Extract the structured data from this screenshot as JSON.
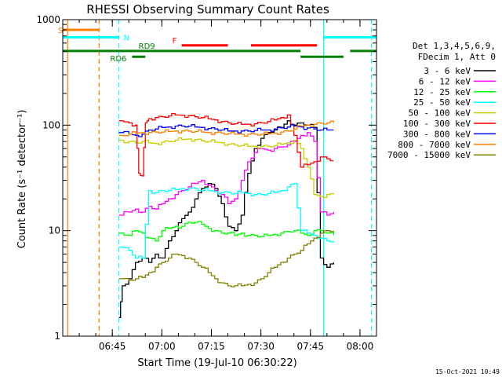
{
  "chart_data": {
    "type": "line",
    "title": "RHESSI Observing Summary Count Rates",
    "xlabel": "Start Time (19-Jul-10 06:30:22)",
    "ylabel": "Count Rate (s⁻¹ detector⁻¹)",
    "y_scale": "log",
    "ylim": [
      1,
      1000
    ],
    "xlim_minutes": [
      0,
      95
    ],
    "x_ticks": [
      {
        "minute": 15,
        "label": "06:45"
      },
      {
        "minute": 30,
        "label": "07:00"
      },
      {
        "minute": 45,
        "label": "07:15"
      },
      {
        "minute": 60,
        "label": "07:30"
      },
      {
        "minute": 75,
        "label": "07:45"
      },
      {
        "minute": 90,
        "label": "08:00"
      }
    ],
    "y_ticks": [
      {
        "value": 1,
        "label": "1"
      },
      {
        "value": 10,
        "label": "10"
      },
      {
        "value": 100,
        "label": "100"
      },
      {
        "value": 1000,
        "label": "1000"
      }
    ],
    "legend_header": [
      "Det 1,3,4,5,6,9,",
      "FDecim 1, Att 0"
    ],
    "legend_placement": "right",
    "series": [
      {
        "name": "3 - 6 keV",
        "color": "#000000",
        "x": [
          17,
          18,
          20,
          22,
          24,
          26,
          28,
          30,
          32,
          34,
          36,
          38,
          40,
          42,
          44,
          46,
          48,
          50,
          52,
          54,
          56,
          58,
          60,
          62,
          64,
          66,
          68,
          70,
          72,
          74,
          76,
          78,
          80,
          82
        ],
        "y": [
          1.5,
          3,
          3.5,
          5,
          5.5,
          5,
          6,
          5.5,
          8,
          10,
          13,
          15,
          20,
          25,
          28,
          25,
          18,
          11,
          10,
          14,
          35,
          60,
          75,
          85,
          90,
          95,
          110,
          100,
          105,
          100,
          95,
          5.5,
          4.5,
          5
        ]
      },
      {
        "name": "6 - 12 keV",
        "color": "#ff00ff",
        "x": [
          17,
          20,
          22,
          24,
          26,
          28,
          30,
          32,
          34,
          36,
          38,
          40,
          42,
          44,
          46,
          48,
          50,
          52,
          54,
          56,
          58,
          60,
          62,
          64,
          66,
          68,
          70,
          72,
          74,
          76,
          78,
          80,
          82
        ],
        "y": [
          14,
          15,
          16,
          15,
          17,
          16,
          18,
          20,
          22,
          24,
          26,
          28,
          30,
          27,
          24,
          22,
          18,
          20,
          30,
          45,
          55,
          60,
          58,
          60,
          62,
          65,
          70,
          80,
          85,
          70,
          15,
          14,
          15
        ]
      },
      {
        "name": "12 - 25 keV",
        "color": "#00ff00",
        "x": [
          17,
          20,
          22,
          24,
          26,
          28,
          30,
          32,
          34,
          36,
          38,
          40,
          42,
          44,
          46,
          48,
          50,
          52,
          54,
          56,
          58,
          60,
          62,
          64,
          66,
          68,
          70,
          72,
          74,
          76,
          78,
          80,
          82
        ],
        "y": [
          9.5,
          9,
          10,
          9.5,
          8.5,
          8,
          10,
          10.5,
          11,
          11,
          12,
          12,
          11.5,
          10.5,
          10,
          9.5,
          9.5,
          9,
          9.5,
          9,
          9,
          8.8,
          9,
          9.2,
          9.5,
          9.8,
          10,
          9.5,
          9,
          10,
          10,
          9.5,
          9
        ]
      },
      {
        "name": "25 - 50 keV",
        "color": "#00ffff",
        "x": [
          17,
          20,
          22,
          24,
          26,
          28,
          30,
          32,
          34,
          36,
          38,
          40,
          42,
          44,
          46,
          48,
          50,
          52,
          54,
          56,
          58,
          60,
          62,
          64,
          66,
          68,
          70,
          72,
          74,
          76,
          78,
          80,
          82
        ],
        "y": [
          7,
          6.5,
          5.5,
          5.5,
          24,
          23,
          24,
          24,
          24.5,
          25,
          25,
          25,
          24,
          24,
          23.5,
          23,
          23,
          22.5,
          23,
          22.5,
          22,
          22,
          22.5,
          23,
          24,
          26,
          28,
          10,
          9.5,
          9,
          8.5,
          8,
          8
        ]
      },
      {
        "name": "50 - 100 keV",
        "color": "#cccc00",
        "x": [
          17,
          20,
          22,
          24,
          26,
          28,
          30,
          32,
          34,
          36,
          38,
          40,
          42,
          44,
          46,
          48,
          50,
          52,
          54,
          56,
          58,
          60,
          62,
          64,
          66,
          68,
          70,
          72,
          74,
          76,
          78,
          80,
          82
        ],
        "y": [
          72,
          70,
          68,
          70,
          68,
          67,
          69,
          70,
          72,
          73,
          74,
          73,
          71,
          70,
          69,
          68,
          66,
          65,
          64,
          63,
          63,
          63,
          63,
          64,
          66,
          68,
          72,
          60,
          40,
          22,
          21,
          22,
          22
        ]
      },
      {
        "name": "100 - 300 keV",
        "color": "#ff0000",
        "x": [
          17,
          20,
          22,
          23,
          24,
          25,
          26,
          28,
          30,
          32,
          34,
          36,
          38,
          40,
          42,
          44,
          46,
          48,
          50,
          52,
          54,
          56,
          58,
          60,
          62,
          64,
          66,
          68,
          70,
          72,
          74,
          76,
          78,
          80,
          82
        ],
        "y": [
          110,
          105,
          100,
          35,
          33,
          105,
          115,
          118,
          120,
          122,
          125,
          124,
          123,
          120,
          118,
          115,
          112,
          108,
          105,
          103,
          102,
          102,
          103,
          105,
          108,
          112,
          118,
          125,
          80,
          40,
          42,
          45,
          50,
          48,
          46
        ]
      },
      {
        "name": "300 - 800 keV",
        "color": "#0000ff",
        "x": [
          17,
          20,
          22,
          24,
          26,
          28,
          30,
          32,
          34,
          36,
          38,
          40,
          42,
          44,
          46,
          48,
          50,
          52,
          54,
          56,
          58,
          60,
          62,
          64,
          66,
          68,
          70,
          72,
          74,
          76,
          78,
          80,
          82
        ],
        "y": [
          85,
          82,
          80,
          82,
          90,
          92,
          95,
          96,
          98,
          98,
          98,
          96,
          95,
          93,
          92,
          90,
          88,
          88,
          88,
          88,
          89,
          90,
          90,
          92,
          94,
          96,
          98,
          96,
          94,
          92,
          90,
          90,
          90
        ]
      },
      {
        "name": "800 - 7000 keV",
        "color": "#ff8000",
        "x": [
          17,
          20,
          22,
          24,
          26,
          28,
          30,
          32,
          34,
          36,
          38,
          40,
          42,
          44,
          46,
          48,
          50,
          52,
          54,
          56,
          58,
          60,
          62,
          64,
          66,
          68,
          70,
          72,
          74,
          76,
          78,
          80,
          82
        ],
        "y": [
          80,
          82,
          84,
          85,
          85,
          86,
          86,
          87,
          88,
          88,
          88,
          87,
          86,
          85,
          85,
          84,
          83,
          82,
          82,
          82,
          82,
          82,
          83,
          84,
          86,
          88,
          92,
          98,
          100,
          102,
          104,
          105,
          105
        ]
      },
      {
        "name": "7000 - 15000 keV",
        "color": "#808000",
        "x": [
          17,
          20,
          22,
          24,
          26,
          28,
          30,
          32,
          34,
          36,
          38,
          40,
          42,
          44,
          46,
          48,
          50,
          52,
          54,
          56,
          58,
          60,
          62,
          64,
          66,
          68,
          70,
          72,
          74,
          76,
          78,
          80,
          82
        ],
        "y": [
          3.5,
          3.4,
          3.5,
          3.6,
          4,
          4.5,
          5,
          5.5,
          6,
          5.8,
          5.5,
          5,
          4.5,
          4,
          3.5,
          3.2,
          3,
          3,
          3,
          3.1,
          3.2,
          3.5,
          4,
          4.5,
          5,
          5.5,
          6,
          6.5,
          7.5,
          8.5,
          9.5,
          10,
          10
        ]
      }
    ],
    "annotations": [
      {
        "label": "S",
        "color": "#ff8000",
        "x_start": 0,
        "x_end": 11,
        "level": 800
      },
      {
        "label": "N",
        "color": "#00ffff",
        "x_start": 0,
        "x_end": 17,
        "level": 680
      },
      {
        "label": "N",
        "color": "#00ffff",
        "x_start": 79,
        "x_end": 95,
        "level": 680,
        "hide_text": true
      },
      {
        "label": "F",
        "color": "#ff0000",
        "x_start": 36,
        "x_end": 50,
        "level": 570
      },
      {
        "label": "F",
        "color": "#ff0000",
        "x_start": 57,
        "x_end": 77,
        "level": 570,
        "hide_text": true
      },
      {
        "label": "RD9",
        "color": "#008000",
        "x_start": 0,
        "x_end": 72,
        "level": 505
      },
      {
        "label": "RD9",
        "color": "#008000",
        "x_start": 87,
        "x_end": 95,
        "level": 505,
        "hide_text": true
      },
      {
        "label": "RD6",
        "color": "#008000",
        "x_start": 21,
        "x_end": 25,
        "level": 445
      },
      {
        "label": "RD6",
        "color": "#008000",
        "x_start": 72,
        "x_end": 85,
        "level": 445,
        "hide_text": true
      }
    ],
    "vertical_markers": [
      {
        "minute": 1.5,
        "color": "#ff8000",
        "style": "solid"
      },
      {
        "minute": 11,
        "color": "#ff8000",
        "style": "dashed"
      },
      {
        "minute": 17,
        "color": "#00ffff",
        "style": "dashed"
      },
      {
        "minute": 79,
        "color": "#00ffff",
        "style": "solid"
      },
      {
        "minute": 93.5,
        "color": "#00ffff",
        "style": "dashed"
      }
    ],
    "timestamp": "15-Oct-2021 10:49"
  }
}
